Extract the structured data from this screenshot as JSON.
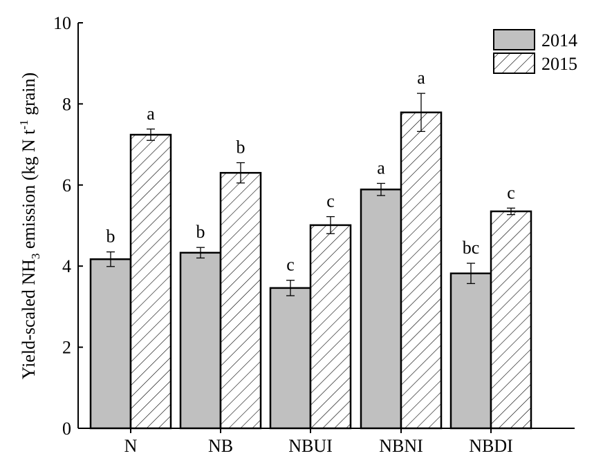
{
  "chart_data": {
    "type": "bar",
    "title": "",
    "xlabel": "",
    "ylabel": {
      "prefix": "Yield-scaled NH",
      "sub": "3",
      "middle": " emission (kg N t",
      "sup": "-1",
      "suffix": " grain)"
    },
    "ylim": [
      0,
      10
    ],
    "yticks": [
      "0",
      "2",
      "4",
      "6",
      "8",
      "10"
    ],
    "categories": [
      "N",
      "NB",
      "NBUI",
      "NBNI",
      "NBDI"
    ],
    "legend_position": "top-right",
    "series": [
      {
        "name": "2014",
        "fill": "#c0c0c0",
        "pattern": "solid",
        "values": [
          4.17,
          4.33,
          3.46,
          5.89,
          3.82
        ],
        "errors": [
          0.18,
          0.13,
          0.19,
          0.15,
          0.25
        ],
        "letters": [
          "b",
          "b",
          "c",
          "a",
          "bc"
        ]
      },
      {
        "name": "2015",
        "fill": "#ffffff",
        "pattern": "hatch",
        "values": [
          7.24,
          6.3,
          5.01,
          7.79,
          5.35
        ],
        "errors": [
          0.14,
          0.25,
          0.21,
          0.47,
          0.08
        ],
        "letters": [
          "a",
          "b",
          "c",
          "a",
          "c"
        ]
      }
    ]
  }
}
